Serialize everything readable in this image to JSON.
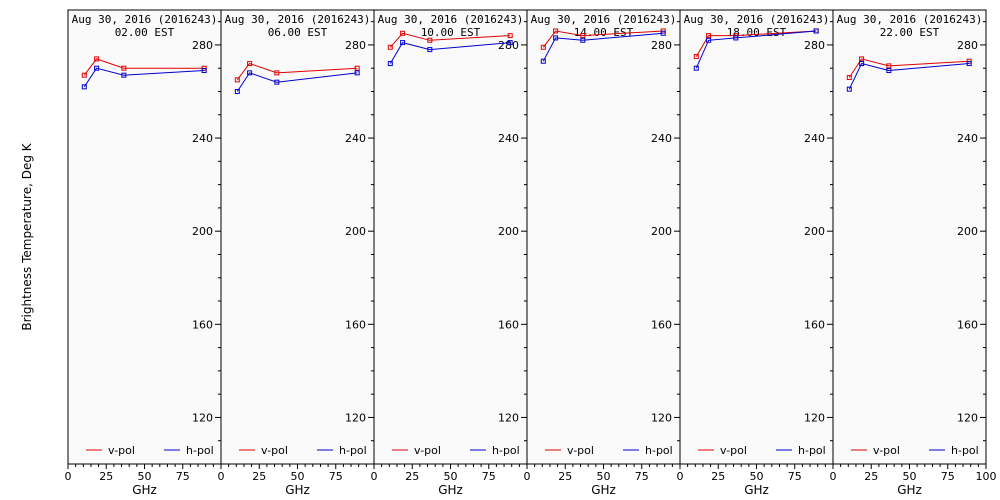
{
  "chart_data": {
    "type": "line",
    "ylabel": "Brightness Temperature, Deg K",
    "xlabel": "GHz",
    "xlim": [
      0,
      100
    ],
    "ylim": [
      100,
      295
    ],
    "xticks": [
      0,
      25,
      50,
      75,
      100
    ],
    "xtick_labels": [
      "0",
      "25",
      "50",
      "75",
      "100"
    ],
    "yticks": [
      120,
      160,
      200,
      240,
      280
    ],
    "ytick_labels": [
      "120",
      "160",
      "200",
      "240",
      "280"
    ],
    "legend_position": "bottom",
    "series_names": [
      "v-pol",
      "h-pol"
    ],
    "series_colors": [
      "#e00000",
      "#0000d0"
    ],
    "x": [
      10.65,
      18.7,
      36.5,
      89.0
    ],
    "panels": [
      {
        "title": "Aug 30, 2016 (2016243)",
        "subtitle": "02.00 EST",
        "series": [
          {
            "name": "v-pol",
            "values": [
              267,
              274,
              270,
              270
            ]
          },
          {
            "name": "h-pol",
            "values": [
              262,
              270,
              267,
              269
            ]
          }
        ]
      },
      {
        "title": "Aug 30, 2016 (2016243)",
        "subtitle": "06.00 EST",
        "series": [
          {
            "name": "v-pol",
            "values": [
              265,
              272,
              268,
              270
            ]
          },
          {
            "name": "h-pol",
            "values": [
              260,
              268,
              264,
              268
            ]
          }
        ]
      },
      {
        "title": "Aug 30, 2016 (2016243)",
        "subtitle": "10.00 EST",
        "series": [
          {
            "name": "v-pol",
            "values": [
              279,
              285,
              282,
              284
            ]
          },
          {
            "name": "h-pol",
            "values": [
              272,
              281,
              278,
              281
            ]
          }
        ]
      },
      {
        "title": "Aug 30, 2016 (2016243)",
        "subtitle": "14.00 EST",
        "series": [
          {
            "name": "v-pol",
            "values": [
              279,
              286,
              284,
              286
            ]
          },
          {
            "name": "h-pol",
            "values": [
              273,
              283,
              282,
              285
            ]
          }
        ]
      },
      {
        "title": "Aug 30, 2016 (2016243)",
        "subtitle": "18.00 EST",
        "series": [
          {
            "name": "v-pol",
            "values": [
              275,
              284,
              284,
              286
            ]
          },
          {
            "name": "h-pol",
            "values": [
              270,
              282,
              283,
              286
            ]
          }
        ]
      },
      {
        "title": "Aug 30, 2016 (2016243)",
        "subtitle": "22.00 EST",
        "series": [
          {
            "name": "v-pol",
            "values": [
              266,
              274,
              271,
              273
            ]
          },
          {
            "name": "h-pol",
            "values": [
              261,
              272,
              269,
              272
            ]
          }
        ]
      }
    ]
  }
}
